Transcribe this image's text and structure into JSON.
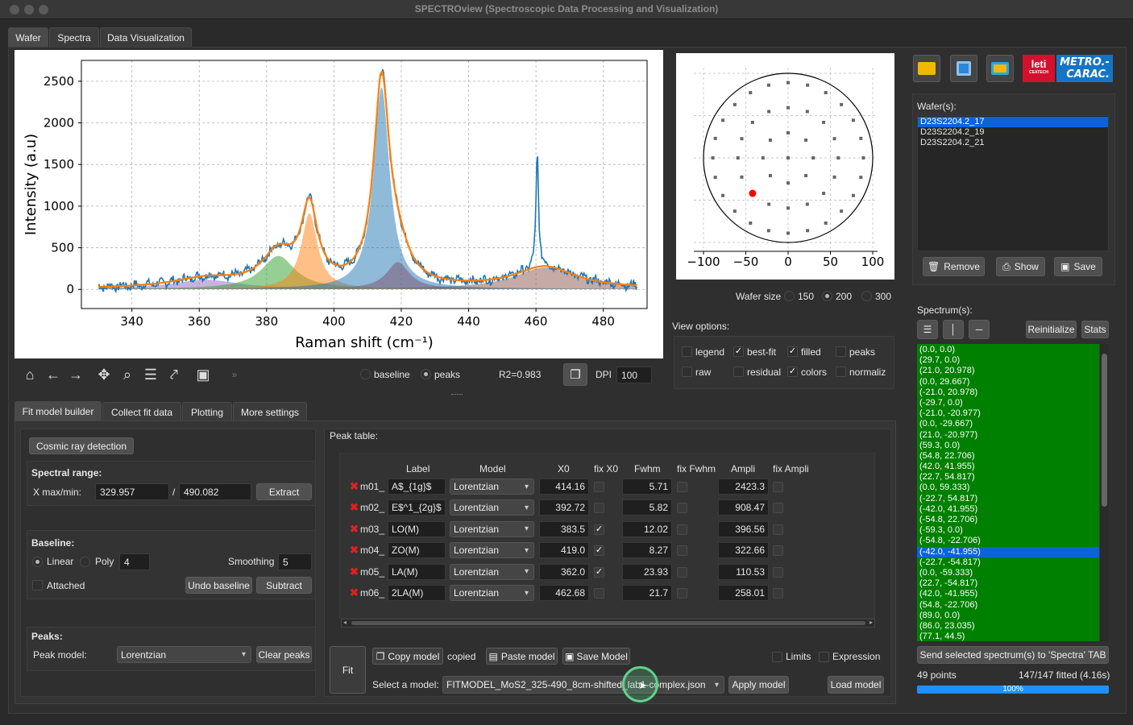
{
  "window": {
    "title": "SPECTROview (Spectroscopic Data Processing and Visualization)"
  },
  "main_tabs": [
    "Wafer",
    "Spectra",
    "Data Visualization"
  ],
  "chart_data": {
    "type": "line",
    "xlabel": "Raman shift (cm⁻¹)",
    "ylabel": "Intensity (a.u)",
    "xlim": [
      325,
      493
    ],
    "ylim": [
      -230,
      2750
    ],
    "xticks": [
      340,
      360,
      380,
      400,
      420,
      440,
      460,
      480
    ],
    "yticks": [
      0,
      500,
      1000,
      1500,
      2000,
      2500
    ],
    "grid": true,
    "peaks": [
      {
        "name": "m06",
        "x0": 258.0,
        "center": 462.68,
        "fwhm": 21.7,
        "color": "#8c564b"
      },
      {
        "name": "m05",
        "x0": 110.53,
        "center": 362.0,
        "fwhm": 23.93,
        "color": "#9467bd"
      },
      {
        "name": "m04",
        "x0": 322.66,
        "center": 419.0,
        "fwhm": 8.27,
        "color": "#d62728"
      },
      {
        "name": "m03",
        "x0": 396.56,
        "center": 383.5,
        "fwhm": 12.02,
        "color": "#2ca02c"
      },
      {
        "name": "m02",
        "x0": 908.47,
        "center": 392.72,
        "fwhm": 5.82,
        "color": "#ff7f0e"
      },
      {
        "name": "m01",
        "x0": 2423.3,
        "center": 414.16,
        "fwhm": 5.71,
        "color": "#1f77b4"
      }
    ],
    "sharp_peak": {
      "x": 460.4,
      "height": 1390
    },
    "baseline_offset": 5,
    "data_range": [
      330,
      490
    ],
    "data_color": "#1f77b4",
    "fit_color": "#ff7f0e"
  },
  "plot_toolbar": {
    "baseline": "baseline",
    "peaks": "peaks",
    "r2": "R2=0.983",
    "dpi_label": "DPI",
    "dpi_value": "100"
  },
  "wafer_map": {
    "xticks": [
      "−100",
      "−50",
      "0",
      "50",
      "100"
    ],
    "points": [
      [
        0,
        0
      ],
      [
        29.7,
        0
      ],
      [
        21,
        20.978
      ],
      [
        0,
        29.667
      ],
      [
        -21,
        20.978
      ],
      [
        -29.7,
        0
      ],
      [
        -21,
        -20.977
      ],
      [
        0,
        -29.667
      ],
      [
        21,
        -20.977
      ],
      [
        59.3,
        0
      ],
      [
        54.8,
        22.706
      ],
      [
        42,
        41.955
      ],
      [
        22.7,
        54.817
      ],
      [
        0,
        59.333
      ],
      [
        -22.7,
        54.817
      ],
      [
        -42,
        41.955
      ],
      [
        -54.8,
        22.706
      ],
      [
        -59.3,
        0
      ],
      [
        -54.8,
        -22.706
      ],
      [
        -42,
        -41.955
      ],
      [
        -22.7,
        -54.817
      ],
      [
        0,
        -59.333
      ],
      [
        22.7,
        -54.817
      ],
      [
        42,
        -41.955
      ],
      [
        54.8,
        -22.706
      ],
      [
        89,
        0
      ],
      [
        86,
        23.035
      ],
      [
        77.1,
        44.5
      ],
      [
        63,
        63
      ],
      [
        44.5,
        77.1
      ],
      [
        23,
        86
      ],
      [
        0,
        89
      ],
      [
        -23,
        86
      ],
      [
        -44.5,
        77.1
      ],
      [
        -63,
        63
      ],
      [
        -77.1,
        44.5
      ],
      [
        -86,
        23
      ],
      [
        -89,
        0
      ],
      [
        -86,
        -23
      ],
      [
        -77.1,
        -44.5
      ],
      [
        -63,
        -63
      ],
      [
        -44.5,
        -77.1
      ],
      [
        -23,
        -86
      ],
      [
        0,
        -89
      ],
      [
        23,
        -86
      ],
      [
        44.5,
        -77.1
      ],
      [
        63,
        -63
      ],
      [
        77.1,
        -44.5
      ],
      [
        86,
        -23
      ]
    ],
    "selected": [
      -42,
      -41.955
    ],
    "selected_color": "#ff0000"
  },
  "wafer_size": {
    "label": "Wafer size",
    "options": [
      "150",
      "200",
      "300"
    ],
    "selected": "200"
  },
  "view_options": {
    "title": "View options:",
    "items": [
      {
        "label": "legend",
        "checked": false
      },
      {
        "label": "best-fit",
        "checked": true
      },
      {
        "label": "filled",
        "checked": true
      },
      {
        "label": "peaks",
        "checked": false
      },
      {
        "label": "raw",
        "checked": false
      },
      {
        "label": "residual",
        "checked": false
      },
      {
        "label": "colors",
        "checked": true
      },
      {
        "label": "normaliz",
        "checked": false
      }
    ]
  },
  "logos": {
    "leti": "leti",
    "leti_sub": "CEATECH",
    "metro": "METRO.-",
    "carac": "CARAC."
  },
  "wafers": {
    "title": "Wafer(s):",
    "items": [
      "D23S2204.2_17",
      "D23S2204.2_19",
      "D23S2204.2_21"
    ],
    "selected": 0,
    "remove": "Remove",
    "show": "Show",
    "save": "Save"
  },
  "spectrums": {
    "title": "Spectrum(s):",
    "reinitialize": "Reinitialize",
    "stats": "Stats",
    "items": [
      "(0.0, 0.0)",
      "(29.7, 0.0)",
      "(21.0, 20.978)",
      "(0.0, 29.667)",
      "(-21.0, 20.978)",
      "(-29.7, 0.0)",
      "(-21.0, -20.977)",
      "(0.0, -29.667)",
      "(21.0, -20.977)",
      "(59.3, 0.0)",
      "(54.8, 22.706)",
      "(42.0, 41.955)",
      "(22.7, 54.817)",
      "(0.0, 59.333)",
      "(-22.7, 54.817)",
      "(-42.0, 41.955)",
      "(-54.8, 22.706)",
      "(-59.3, 0.0)",
      "(-54.8, -22.706)",
      "(-42.0, -41.955)",
      "(-22.7, -54.817)",
      "(0.0, -59.333)",
      "(22.7, -54.817)",
      "(42.0, -41.955)",
      "(54.8, -22.706)",
      "(89.0, 0.0)",
      "(86.0, 23.035)",
      "(77.1, 44.5)"
    ],
    "selected": 19,
    "send": "Send selected spectrum(s) to 'Spectra' TAB",
    "points": "49 points",
    "fitted": "147/147 fitted (4.16s)",
    "progress": 1.0,
    "progress_label": "100%"
  },
  "sub_tabs": [
    "Fit model builder",
    "Collect fit data",
    "Plotting",
    "More settings"
  ],
  "builder": {
    "cosmic": "Cosmic ray detection",
    "spectral_range": "Spectral range:",
    "xmaxmin": "X max/min:",
    "xmin": "329.957",
    "slash": "/",
    "xmax": "490.082",
    "extract": "Extract",
    "baseline": "Baseline:",
    "linear": "Linear",
    "poly": "Poly",
    "poly_order": "4",
    "smoothing": "Smoothing",
    "smoothing_val": "5",
    "attached": "Attached",
    "undo": "Undo baseline",
    "subtract": "Subtract",
    "peaks": "Peaks:",
    "peak_model_label": "Peak model:",
    "peak_model": "Lorentzian",
    "clear": "Clear peaks",
    "fit": "Fit"
  },
  "peak_table": {
    "title": "Peak table:",
    "headers": [
      "Label",
      "Model",
      "X0",
      "fix X0",
      "Fwhm",
      "fix Fwhm",
      "Ampli",
      "fix Ampli"
    ],
    "rows": [
      {
        "id": "m01_",
        "label": "A$_{1g}$",
        "model": "Lorentzian",
        "x0": "414.16",
        "fix_x0": false,
        "fwhm": "5.71",
        "ampli": "2423.3"
      },
      {
        "id": "m02_",
        "label": "E$^1_{2g}$",
        "model": "Lorentzian",
        "x0": "392.72",
        "fix_x0": false,
        "fwhm": "5.82",
        "ampli": "908.47"
      },
      {
        "id": "m03_",
        "label": "LO(M)",
        "model": "Lorentzian",
        "x0": "383.5",
        "fix_x0": true,
        "fwhm": "12.02",
        "ampli": "396.56"
      },
      {
        "id": "m04_",
        "label": "ZO(M)",
        "model": "Lorentzian",
        "x0": "419.0",
        "fix_x0": true,
        "fwhm": "8.27",
        "ampli": "322.66"
      },
      {
        "id": "m05_",
        "label": "LA(M)",
        "model": "Lorentzian",
        "x0": "362.0",
        "fix_x0": true,
        "fwhm": "23.93",
        "ampli": "110.53"
      },
      {
        "id": "m06_",
        "label": "2LA(M)",
        "model": "Lorentzian",
        "x0": "462.68",
        "fix_x0": false,
        "fwhm": "21.7",
        "ampli": "258.01"
      }
    ]
  },
  "model_bar": {
    "copy": "Copy model",
    "copied": "copied",
    "paste": "Paste model",
    "save": "Save Model",
    "limits": "Limits",
    "expression": "Expression",
    "select_label": "Select a model:",
    "selected_model": "FITMODEL_MoS2_325-490_8cm-shifted_lab1-complex.json",
    "apply": "Apply model",
    "load": "Load model"
  },
  "colors": {
    "accent": "#0a84ff",
    "list_green": "#008000",
    "window_bg": "#2a2a2a"
  }
}
